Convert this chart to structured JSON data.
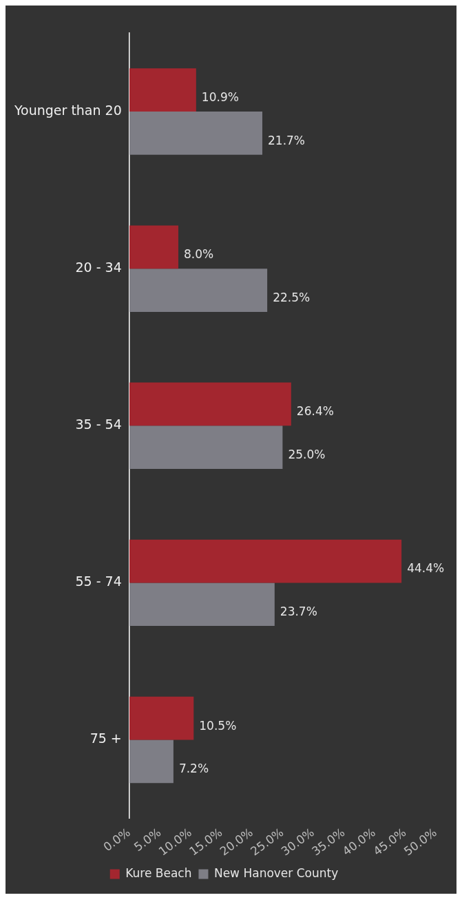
{
  "chart_data": {
    "type": "bar",
    "orientation": "horizontal",
    "categories": [
      "Younger than 20",
      "20 - 34",
      "35 - 54",
      "55 - 74",
      "75 +"
    ],
    "series": [
      {
        "name": "Kure Beach",
        "color": "#a3262f",
        "values": [
          10.9,
          8.0,
          26.4,
          44.4,
          10.5
        ],
        "value_labels": [
          "10.9%",
          "8.0%",
          "26.4%",
          "44.4%",
          "10.5%"
        ]
      },
      {
        "name": "New Hanover County",
        "color": "#7e7e86",
        "values": [
          21.7,
          22.5,
          25.0,
          23.7,
          7.2
        ],
        "value_labels": [
          "21.7%",
          "22.5%",
          "25.0%",
          "23.7%",
          "7.2%"
        ]
      }
    ],
    "xlim": [
      0,
      50
    ],
    "xticks": [
      {
        "value": 0,
        "label": "0.0%"
      },
      {
        "value": 5,
        "label": "5.0%"
      },
      {
        "value": 10,
        "label": "10.0%"
      },
      {
        "value": 15,
        "label": "15.0%"
      },
      {
        "value": 20,
        "label": "20.0%"
      },
      {
        "value": 25,
        "label": "25.0%"
      },
      {
        "value": 30,
        "label": "30.0%"
      },
      {
        "value": 35,
        "label": "35.0%"
      },
      {
        "value": 40,
        "label": "40.0%"
      },
      {
        "value": 45,
        "label": "45.0%"
      },
      {
        "value": 50,
        "label": "50.0%"
      }
    ],
    "grid": false,
    "legend": "bottom"
  }
}
